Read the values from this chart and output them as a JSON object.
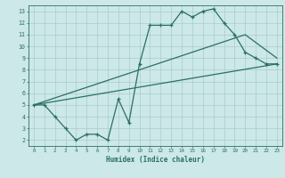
{
  "xlabel": "Humidex (Indice chaleur)",
  "ylabel": "",
  "bg_color": "#cce8e8",
  "grid_color": "#aacccc",
  "line_color": "#2a7060",
  "xlim": [
    -0.5,
    23.5
  ],
  "ylim": [
    1.5,
    13.5
  ],
  "xticks": [
    0,
    1,
    2,
    3,
    4,
    5,
    6,
    7,
    8,
    9,
    10,
    11,
    12,
    13,
    14,
    15,
    16,
    17,
    18,
    19,
    20,
    21,
    22,
    23
  ],
  "yticks": [
    2,
    3,
    4,
    5,
    6,
    7,
    8,
    9,
    10,
    11,
    12,
    13
  ],
  "line1_x": [
    0,
    1,
    2,
    3,
    4,
    5,
    6,
    7,
    8,
    9,
    10,
    11,
    12,
    13,
    14,
    15,
    16,
    17,
    18,
    19,
    20,
    21,
    22,
    23
  ],
  "line1_y": [
    5,
    5,
    4,
    3,
    2,
    2.5,
    2.5,
    2,
    5.5,
    3.5,
    8.5,
    11.8,
    11.8,
    11.8,
    13,
    12.5,
    13,
    13.2,
    12,
    11,
    9.5,
    9.0,
    8.5,
    8.5
  ],
  "line2_x": [
    0,
    23
  ],
  "line2_y": [
    5,
    8.5
  ],
  "line3_x": [
    0,
    20,
    23
  ],
  "line3_y": [
    5,
    11,
    9
  ]
}
